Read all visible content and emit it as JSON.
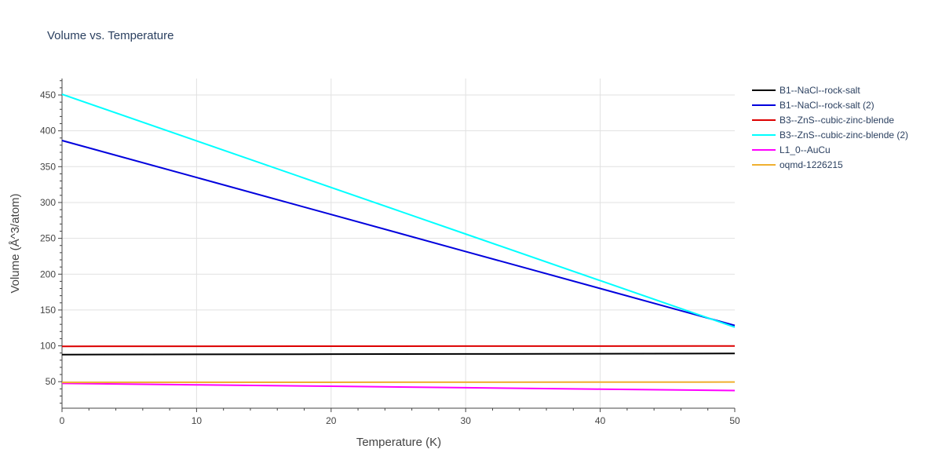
{
  "chart_data": {
    "type": "line",
    "title": "Volume vs. Temperature",
    "xlabel": "Temperature (K)",
    "ylabel": "Volume (Å^3/atom)",
    "xlim": [
      0,
      50
    ],
    "ylim": [
      13,
      473
    ],
    "x_ticks": [
      "0",
      "10",
      "20",
      "30",
      "40",
      "50"
    ],
    "y_ticks": [
      "50",
      "100",
      "150",
      "200",
      "250",
      "300",
      "350",
      "400",
      "450"
    ],
    "grid": true,
    "legend_position": "right",
    "x": [
      0,
      10,
      20,
      30,
      40,
      50
    ],
    "series": [
      {
        "name": "B1--NaCl--rock-salt",
        "color": "#000000",
        "values": [
          87.8,
          88.1,
          88.4,
          88.7,
          89.0,
          89.4
        ]
      },
      {
        "name": "B1--NaCl--rock-salt (2)",
        "color": "#0000dd",
        "values": [
          386.5,
          334.9,
          283.3,
          231.6,
          180.0,
          128.4
        ]
      },
      {
        "name": "B3--ZnS--cubic-zinc-blende",
        "color": "#dd0000",
        "values": [
          99.3,
          99.4,
          99.5,
          99.6,
          99.7,
          99.8
        ]
      },
      {
        "name": "B3--ZnS--cubic-zinc-blende (2)",
        "color": "#00ffff",
        "values": [
          451.0,
          386.0,
          321.0,
          256.0,
          191.0,
          126.0
        ]
      },
      {
        "name": "L1_0--AuCu",
        "color": "#ff00ff",
        "values": [
          47.6,
          45.6,
          43.6,
          41.6,
          39.6,
          37.6
        ]
      },
      {
        "name": "oqmd-1226215",
        "color": "#f0b030",
        "values": [
          49.0,
          49.1,
          49.2,
          49.3,
          49.4,
          49.5
        ]
      }
    ]
  }
}
